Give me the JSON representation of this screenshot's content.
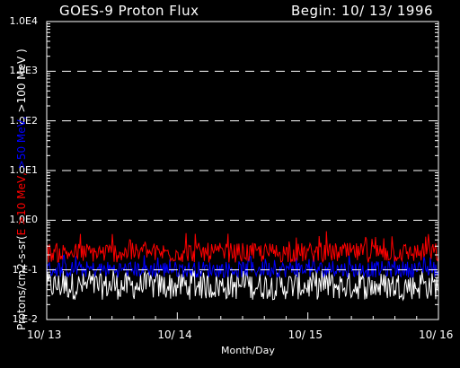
{
  "title_left": "GOES-9 Proton Flux",
  "title_right": "Begin: 10/ 13/ 1996",
  "chart_data": {
    "type": "line",
    "title": "GOES-9 Proton Flux",
    "begin": "Begin: 10/ 13/ 1996",
    "xlabel": "Month/Day",
    "ylabel_parts": [
      {
        "text": "Protons/cm2-s-sr(",
        "color": "#ffffff"
      },
      {
        "text": "E >10 MeV,",
        "color": "#ff0000"
      },
      {
        "text": " >50 MeV,",
        "color": "#0000ff"
      },
      {
        "text": " >100 MeV )",
        "color": "#ffffff"
      }
    ],
    "yscale": "log",
    "ylim": [
      0.01,
      10000
    ],
    "yticks": [
      "1.E-2",
      "1.E-1",
      "1.0E0",
      "1.0E1",
      "1.0E2",
      "1.0E3",
      "1.0E4"
    ],
    "ytick_values": [
      0.01,
      0.1,
      1,
      10,
      100,
      1000,
      10000
    ],
    "xticks": [
      "10/ 13",
      "10/ 14",
      "10/ 15",
      "10/ 16"
    ],
    "xlim_days": [
      13,
      16
    ],
    "grid": "dashed horizontal at decades",
    "series": [
      {
        "name": "E >10 MeV",
        "color": "#ff0000",
        "baseline": 0.2,
        "spread_low": 0.14,
        "spread_high": 0.35,
        "spike_max": 0.6
      },
      {
        "name": ">50 MeV",
        "color": "#0000ff",
        "baseline": 0.1,
        "spread_low": 0.07,
        "spread_high": 0.15,
        "spike_max": 0.2
      },
      {
        "name": ">100 MeV",
        "color": "#ffffff",
        "baseline": 0.045,
        "spread_low": 0.025,
        "spread_high": 0.09,
        "spike_max": 0.1
      }
    ]
  }
}
